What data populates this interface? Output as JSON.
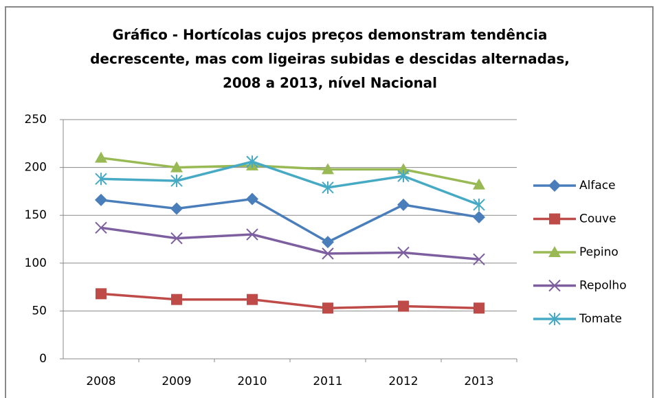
{
  "chart_data": {
    "type": "line",
    "title": [
      "Gráfico - Hortícolas cujos preços demonstram tendência",
      "decrescente, mas com ligeiras subidas e descidas alternadas,",
      "2008 a 2013, nível Nacional"
    ],
    "categories": [
      "2008",
      "2009",
      "2010",
      "2011",
      "2012",
      "2013"
    ],
    "series": [
      {
        "name": "Alface",
        "color": "#4a7ebb",
        "marker": "diamond",
        "values": [
          166,
          157,
          167,
          122,
          161,
          148
        ]
      },
      {
        "name": "Couve",
        "color": "#be4b48",
        "marker": "square",
        "values": [
          68,
          62,
          62,
          53,
          55,
          53
        ]
      },
      {
        "name": "Pepino",
        "color": "#98b954",
        "marker": "triangle",
        "values": [
          210,
          200,
          202,
          198,
          198,
          182
        ]
      },
      {
        "name": "Repolho",
        "color": "#7d5fa0",
        "marker": "x",
        "values": [
          137,
          126,
          130,
          110,
          111,
          104
        ]
      },
      {
        "name": "Tomate",
        "color": "#46aac5",
        "marker": "star",
        "values": [
          188,
          186,
          206,
          179,
          191,
          161
        ]
      }
    ],
    "ylim": [
      0,
      250
    ],
    "yticks": [
      0,
      50,
      100,
      150,
      200,
      250
    ],
    "grid": true,
    "legend": "right"
  }
}
